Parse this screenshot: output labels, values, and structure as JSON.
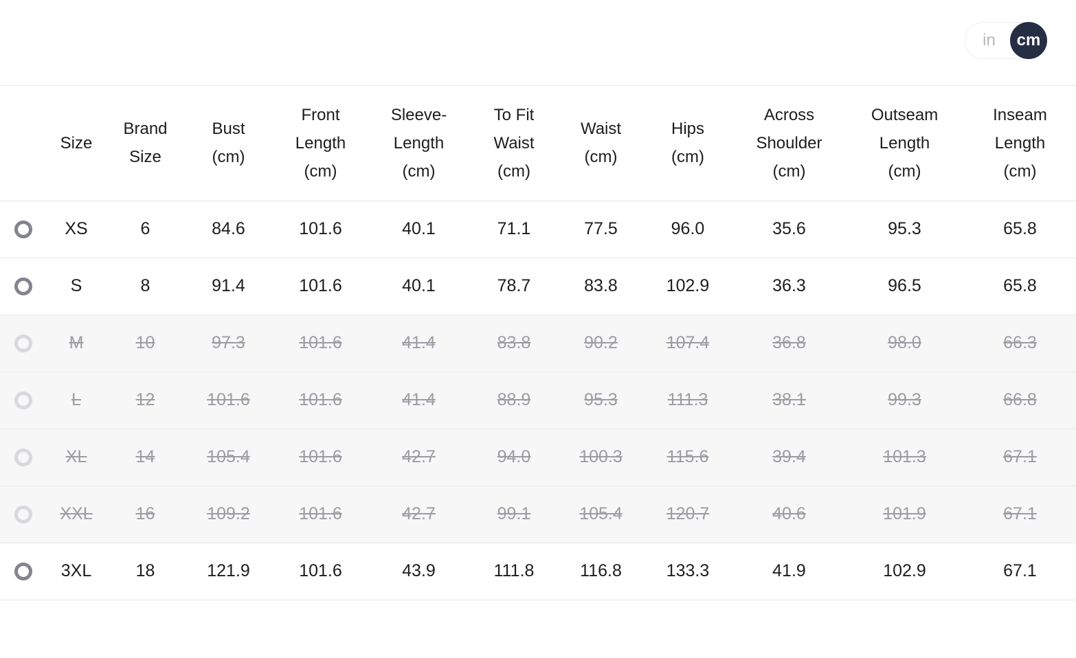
{
  "unit_toggle": {
    "in_label": "in",
    "cm_label": "cm",
    "selected": "cm",
    "active_bg": "#262e43",
    "active_text_color": "#ffffff",
    "inactive_text_color": "#b7b7be"
  },
  "table": {
    "columns": [
      {
        "id": "size",
        "lines": [
          "Size"
        ]
      },
      {
        "id": "brand-size",
        "lines": [
          "Brand",
          "Size"
        ]
      },
      {
        "id": "bust",
        "lines": [
          "Bust",
          "(cm)"
        ]
      },
      {
        "id": "front-length",
        "lines": [
          "Front",
          "Length",
          "(cm)"
        ]
      },
      {
        "id": "sleeve-length",
        "lines": [
          "Sleeve-",
          "Length",
          "(cm)"
        ]
      },
      {
        "id": "to-fit-waist",
        "lines": [
          "To Fit",
          "Waist",
          "(cm)"
        ]
      },
      {
        "id": "waist",
        "lines": [
          "Waist",
          "(cm)"
        ]
      },
      {
        "id": "hips",
        "lines": [
          "Hips",
          "(cm)"
        ]
      },
      {
        "id": "across-shoulder",
        "lines": [
          "Across",
          "Shoulder",
          "(cm)"
        ]
      },
      {
        "id": "outseam-length",
        "lines": [
          "Outseam",
          "Length",
          "(cm)"
        ]
      },
      {
        "id": "inseam-length",
        "lines": [
          "Inseam",
          "Length",
          "(cm)"
        ]
      }
    ],
    "rows": [
      {
        "size": "XS",
        "available": true,
        "selected": false,
        "cells": [
          "XS",
          "6",
          "84.6",
          "101.6",
          "40.1",
          "71.1",
          "77.5",
          "96.0",
          "35.6",
          "95.3",
          "65.8"
        ]
      },
      {
        "size": "S",
        "available": true,
        "selected": false,
        "cells": [
          "S",
          "8",
          "91.4",
          "101.6",
          "40.1",
          "78.7",
          "83.8",
          "102.9",
          "36.3",
          "96.5",
          "65.8"
        ]
      },
      {
        "size": "M",
        "available": false,
        "selected": false,
        "cells": [
          "M",
          "10",
          "97.3",
          "101.6",
          "41.4",
          "83.8",
          "90.2",
          "107.4",
          "36.8",
          "98.0",
          "66.3"
        ]
      },
      {
        "size": "L",
        "available": false,
        "selected": false,
        "cells": [
          "L",
          "12",
          "101.6",
          "101.6",
          "41.4",
          "88.9",
          "95.3",
          "111.3",
          "38.1",
          "99.3",
          "66.8"
        ]
      },
      {
        "size": "XL",
        "available": false,
        "selected": false,
        "cells": [
          "XL",
          "14",
          "105.4",
          "101.6",
          "42.7",
          "94.0",
          "100.3",
          "115.6",
          "39.4",
          "101.3",
          "67.1"
        ]
      },
      {
        "size": "XXL",
        "available": false,
        "selected": false,
        "cells": [
          "XXL",
          "16",
          "109.2",
          "101.6",
          "42.7",
          "99.1",
          "105.4",
          "120.7",
          "40.6",
          "101.9",
          "67.1"
        ]
      },
      {
        "size": "3XL",
        "available": true,
        "selected": false,
        "cells": [
          "3XL",
          "18",
          "121.9",
          "101.6",
          "43.9",
          "111.8",
          "116.8",
          "133.3",
          "41.9",
          "102.9",
          "67.1"
        ]
      }
    ]
  },
  "colors": {
    "text": "#1d1d1f",
    "disabled_text": "#9c9ca3",
    "divider": "#e8e8ea",
    "toggle_active_bg": "#262e43",
    "unavailable_row_bg": "#f7f7f8"
  }
}
